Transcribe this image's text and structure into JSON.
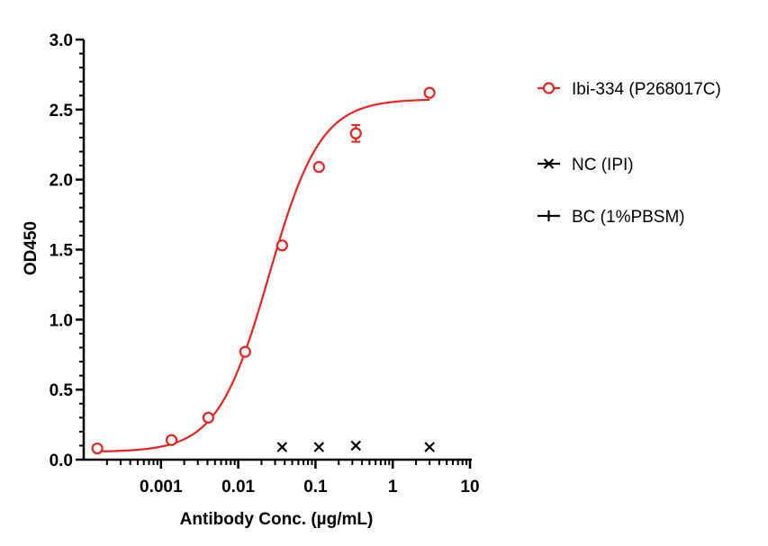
{
  "chart_data": {
    "type": "scatter",
    "xlabel": "Antibody Conc. (µg/mL)",
    "ylabel": "OD450",
    "x_scale": "log",
    "xlim": [
      0.0001,
      10
    ],
    "ylim": [
      0,
      3.0
    ],
    "x_ticks": [
      {
        "value": 0.001,
        "label": "0.001"
      },
      {
        "value": 0.01,
        "label": "0.01"
      },
      {
        "value": 0.1,
        "label": "0.1"
      },
      {
        "value": 1,
        "label": "1"
      },
      {
        "value": 10,
        "label": "10"
      }
    ],
    "y_ticks": [
      {
        "value": 0.0,
        "label": "0.0"
      },
      {
        "value": 0.5,
        "label": "0.5"
      },
      {
        "value": 1.0,
        "label": "1.0"
      },
      {
        "value": 1.5,
        "label": "1.5"
      },
      {
        "value": 2.0,
        "label": "2.0"
      },
      {
        "value": 2.5,
        "label": "2.5"
      },
      {
        "value": 3.0,
        "label": "3.0"
      }
    ],
    "grid": false,
    "legend_position": "right",
    "series": [
      {
        "name": "Ibi-334 (P268017C)",
        "color": "#e8231f",
        "marker": "circle-open",
        "fit": "4PL",
        "points": [
          {
            "x": 0.00015,
            "y": 0.08
          },
          {
            "x": 0.00137,
            "y": 0.14
          },
          {
            "x": 0.0041,
            "y": 0.3
          },
          {
            "x": 0.0123,
            "y": 0.77
          },
          {
            "x": 0.037,
            "y": 1.53
          },
          {
            "x": 0.111,
            "y": 2.09
          },
          {
            "x": 0.333,
            "y": 2.33,
            "err": 0.06
          },
          {
            "x": 3.0,
            "y": 2.62
          }
        ]
      },
      {
        "name": "NC (IPI)",
        "color": "#000000",
        "marker": "x",
        "points": [
          {
            "x": 0.037,
            "y": 0.09
          },
          {
            "x": 0.111,
            "y": 0.09
          },
          {
            "x": 0.333,
            "y": 0.1
          },
          {
            "x": 3.0,
            "y": 0.09
          }
        ]
      },
      {
        "name": "BC (1%PBSM)",
        "color": "#000000",
        "marker": "plus",
        "points": []
      }
    ]
  }
}
